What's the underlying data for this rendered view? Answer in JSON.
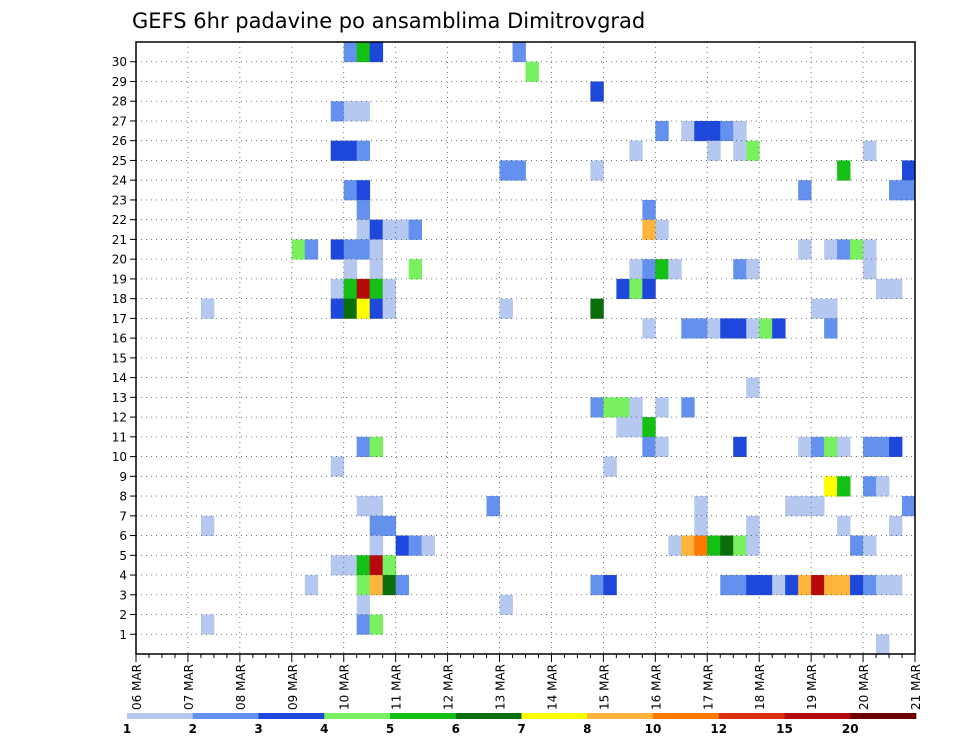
{
  "chart_data": {
    "type": "heatmap",
    "title": "GEFS 6hr padavine po ansamblima Dimitrovgrad",
    "x_ticks": [
      "06 MAR",
      "07 MAR",
      "08 MAR",
      "09 MAR",
      "10 MAR",
      "11 MAR",
      "12 MAR",
      "13 MAR",
      "14 MAR",
      "15 MAR",
      "16 MAR",
      "17 MAR",
      "18 MAR",
      "19 MAR",
      "20 MAR",
      "21 MAR"
    ],
    "y_ticks": [
      "1",
      "2",
      "3",
      "4",
      "5",
      "6",
      "7",
      "8",
      "9",
      "10",
      "11",
      "12",
      "13",
      "14",
      "15",
      "16",
      "17",
      "18",
      "19",
      "20",
      "21",
      "22",
      "23",
      "24",
      "25",
      "26",
      "27",
      "28",
      "29",
      "30"
    ],
    "x_step": "6hr",
    "xlim": [
      "06 MAR 00Z",
      "21 MAR 00Z"
    ],
    "ylim": [
      1,
      30
    ],
    "grid": true,
    "color_scale": {
      "bounds": [
        "1",
        "2",
        "3",
        "4",
        "5",
        "6",
        "7",
        "8",
        "10",
        "12",
        "15",
        "20"
      ],
      "colors": [
        "#b4c8f0",
        "#6490ee",
        "#1e48dc",
        "#78f060",
        "#14c014",
        "#0a6e0a",
        "#ffff00",
        "#ffb43c",
        "#ff7800",
        "#dc2d0a",
        "#b40a0a",
        "#6e0000"
      ]
    },
    "cells": [
      [
        16,
        30,
        2
      ],
      [
        17,
        30,
        5
      ],
      [
        18,
        30,
        3
      ],
      [
        29,
        30,
        2
      ],
      [
        30,
        29,
        4
      ],
      [
        35,
        28,
        3
      ],
      [
        15,
        27,
        2
      ],
      [
        16,
        27,
        1
      ],
      [
        17,
        27,
        1
      ],
      [
        40,
        26,
        2
      ],
      [
        42,
        26,
        1
      ],
      [
        43,
        26,
        3
      ],
      [
        44,
        26,
        3
      ],
      [
        45,
        26,
        2
      ],
      [
        46,
        26,
        1
      ],
      [
        15,
        25,
        3
      ],
      [
        16,
        25,
        3
      ],
      [
        17,
        25,
        2
      ],
      [
        38,
        25,
        1
      ],
      [
        44,
        25,
        1
      ],
      [
        46,
        25,
        1
      ],
      [
        47,
        25,
        4
      ],
      [
        56,
        25,
        1
      ],
      [
        28,
        24,
        2
      ],
      [
        29,
        24,
        2
      ],
      [
        35,
        24,
        1
      ],
      [
        54,
        24,
        5
      ],
      [
        59,
        24,
        3
      ],
      [
        16,
        23,
        2
      ],
      [
        17,
        23,
        3
      ],
      [
        51,
        23,
        2
      ],
      [
        58,
        23,
        2
      ],
      [
        59,
        23,
        2
      ],
      [
        17,
        22,
        2
      ],
      [
        39,
        22,
        2
      ],
      [
        17,
        21,
        1
      ],
      [
        18,
        21,
        3
      ],
      [
        19,
        21,
        1
      ],
      [
        20,
        21,
        1
      ],
      [
        21,
        21,
        2
      ],
      [
        39,
        21,
        8
      ],
      [
        40,
        21,
        1
      ],
      [
        12,
        20,
        4
      ],
      [
        13,
        20,
        2
      ],
      [
        15,
        20,
        3
      ],
      [
        16,
        20,
        2
      ],
      [
        17,
        20,
        2
      ],
      [
        18,
        20,
        1
      ],
      [
        51,
        20,
        1
      ],
      [
        53,
        20,
        1
      ],
      [
        54,
        20,
        2
      ],
      [
        55,
        20,
        4
      ],
      [
        56,
        20,
        1
      ],
      [
        16,
        19,
        1
      ],
      [
        18,
        19,
        1
      ],
      [
        21,
        19,
        4
      ],
      [
        38,
        19,
        1
      ],
      [
        39,
        19,
        2
      ],
      [
        40,
        19,
        5
      ],
      [
        41,
        19,
        1
      ],
      [
        46,
        19,
        2
      ],
      [
        47,
        19,
        1
      ],
      [
        56,
        19,
        1
      ],
      [
        15,
        18,
        1
      ],
      [
        16,
        18,
        5
      ],
      [
        17,
        18,
        11
      ],
      [
        18,
        18,
        5
      ],
      [
        19,
        18,
        1
      ],
      [
        37,
        18,
        3
      ],
      [
        38,
        18,
        4
      ],
      [
        39,
        18,
        3
      ],
      [
        57,
        18,
        1
      ],
      [
        58,
        18,
        1
      ],
      [
        5,
        17,
        1
      ],
      [
        15,
        17,
        3
      ],
      [
        16,
        17,
        6
      ],
      [
        17,
        17,
        7
      ],
      [
        18,
        17,
        3
      ],
      [
        19,
        17,
        1
      ],
      [
        28,
        17,
        1
      ],
      [
        35,
        17,
        6
      ],
      [
        52,
        17,
        1
      ],
      [
        53,
        17,
        1
      ],
      [
        39,
        16,
        1
      ],
      [
        42,
        16,
        2
      ],
      [
        43,
        16,
        2
      ],
      [
        44,
        16,
        1
      ],
      [
        45,
        16,
        3
      ],
      [
        46,
        16,
        3
      ],
      [
        47,
        16,
        1
      ],
      [
        48,
        16,
        4
      ],
      [
        49,
        16,
        3
      ],
      [
        53,
        16,
        2
      ],
      [
        47,
        13,
        1
      ],
      [
        35,
        12,
        2
      ],
      [
        36,
        12,
        4
      ],
      [
        37,
        12,
        4
      ],
      [
        38,
        12,
        1
      ],
      [
        40,
        12,
        1
      ],
      [
        42,
        12,
        2
      ],
      [
        37,
        11,
        1
      ],
      [
        38,
        11,
        1
      ],
      [
        39,
        11,
        5
      ],
      [
        17,
        10,
        2
      ],
      [
        18,
        10,
        4
      ],
      [
        39,
        10,
        2
      ],
      [
        40,
        10,
        1
      ],
      [
        46,
        10,
        3
      ],
      [
        51,
        10,
        1
      ],
      [
        52,
        10,
        2
      ],
      [
        53,
        10,
        4
      ],
      [
        54,
        10,
        1
      ],
      [
        56,
        10,
        2
      ],
      [
        57,
        10,
        2
      ],
      [
        58,
        10,
        3
      ],
      [
        15,
        9,
        1
      ],
      [
        36,
        9,
        1
      ],
      [
        53,
        8,
        7
      ],
      [
        54,
        8,
        5
      ],
      [
        56,
        8,
        2
      ],
      [
        57,
        8,
        1
      ],
      [
        17,
        7,
        1
      ],
      [
        18,
        7,
        1
      ],
      [
        27,
        7,
        2
      ],
      [
        43,
        7,
        1
      ],
      [
        50,
        7,
        1
      ],
      [
        51,
        7,
        1
      ],
      [
        52,
        7,
        1
      ],
      [
        59,
        7,
        2
      ],
      [
        5,
        6,
        1
      ],
      [
        18,
        6,
        2
      ],
      [
        19,
        6,
        2
      ],
      [
        43,
        6,
        1
      ],
      [
        47,
        6,
        1
      ],
      [
        54,
        6,
        1
      ],
      [
        58,
        6,
        1
      ],
      [
        18,
        5,
        1
      ],
      [
        20,
        5,
        3
      ],
      [
        21,
        5,
        2
      ],
      [
        22,
        5,
        1
      ],
      [
        41,
        5,
        1
      ],
      [
        42,
        5,
        8
      ],
      [
        43,
        5,
        9
      ],
      [
        44,
        5,
        5
      ],
      [
        45,
        5,
        6
      ],
      [
        46,
        5,
        4
      ],
      [
        47,
        5,
        1
      ],
      [
        55,
        5,
        2
      ],
      [
        56,
        5,
        1
      ],
      [
        15,
        4,
        1
      ],
      [
        16,
        4,
        1
      ],
      [
        17,
        4,
        5
      ],
      [
        18,
        4,
        11
      ],
      [
        19,
        4,
        4
      ],
      [
        13,
        3,
        1
      ],
      [
        17,
        3,
        4
      ],
      [
        18,
        3,
        8
      ],
      [
        19,
        3,
        6
      ],
      [
        20,
        3,
        2
      ],
      [
        35,
        3,
        2
      ],
      [
        36,
        3,
        3
      ],
      [
        45,
        3,
        2
      ],
      [
        46,
        3,
        2
      ],
      [
        47,
        3,
        3
      ],
      [
        48,
        3,
        3
      ],
      [
        49,
        3,
        1
      ],
      [
        50,
        3,
        3
      ],
      [
        51,
        3,
        8
      ],
      [
        52,
        3,
        11
      ],
      [
        53,
        3,
        8
      ],
      [
        54,
        3,
        8
      ],
      [
        55,
        3,
        3
      ],
      [
        56,
        3,
        2
      ],
      [
        57,
        3,
        1
      ],
      [
        58,
        3,
        1
      ],
      [
        17,
        2,
        1
      ],
      [
        28,
        2,
        1
      ],
      [
        5,
        1,
        1
      ],
      [
        17,
        1,
        2
      ],
      [
        18,
        1,
        4
      ],
      [
        57,
        0,
        1
      ]
    ]
  }
}
